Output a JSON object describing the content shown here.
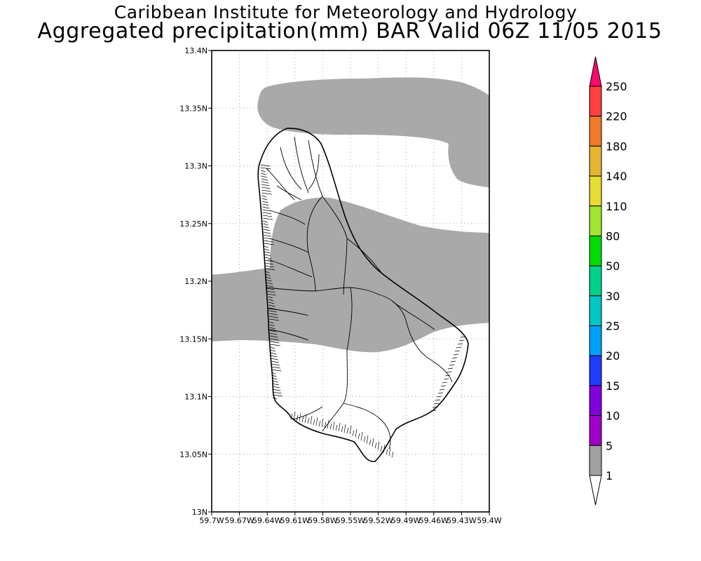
{
  "title_line1": "Caribbean Institute for Meteorology and Hydrology",
  "title_line2": "Aggregated precipitation(mm) BAR Valid 06Z 11/05 2015",
  "lat_ticks": [
    "13.4N",
    "13.35N",
    "13.3N",
    "13.25N",
    "13.2N",
    "13.15N",
    "13.1N",
    "13.05N",
    "13N"
  ],
  "lon_ticks": [
    "59.7W",
    "59.67W",
    "59.64W",
    "59.61W",
    "59.58W",
    "59.55W",
    "59.52W",
    "59.49W",
    "59.46W",
    "59.43W",
    "59.4W"
  ],
  "colorbar": {
    "labels": [
      "250",
      "220",
      "180",
      "140",
      "110",
      "80",
      "50",
      "30",
      "25",
      "20",
      "15",
      "10",
      "5",
      "1"
    ],
    "colors": [
      "#ff0a6e",
      "#ff4040",
      "#f07a28",
      "#e6b432",
      "#e6dc32",
      "#a0e632",
      "#00dc00",
      "#00d28c",
      "#00c8c8",
      "#00a0ff",
      "#1e3cff",
      "#8200dc",
      "#a000c8",
      "#a0a0a0",
      "#ffffff"
    ]
  },
  "legend_colors": {
    "light_rain": "#a9a9a9",
    "background": "#ffffff",
    "coastline": "#000000"
  }
}
